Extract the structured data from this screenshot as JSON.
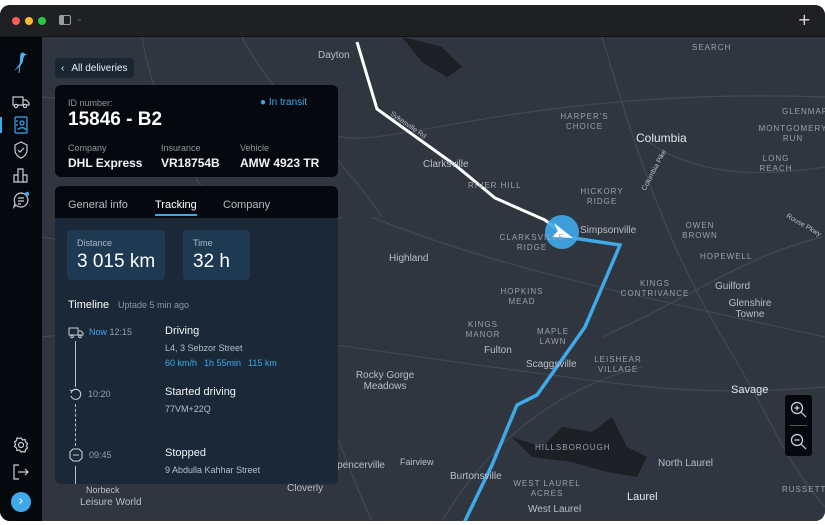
{
  "window": {
    "new_tab_label": "+"
  },
  "sidebar": {
    "items": [
      {
        "icon": "truck-icon"
      },
      {
        "icon": "contact-card-icon",
        "active": true
      },
      {
        "icon": "shield-check-icon"
      },
      {
        "icon": "bar-chart-icon"
      },
      {
        "icon": "chat-notification-icon"
      }
    ],
    "bottom": [
      {
        "icon": "gear-icon"
      },
      {
        "icon": "logout-icon"
      },
      {
        "icon": "expand-chevron-icon"
      }
    ]
  },
  "back_button": {
    "label": "All deliveries"
  },
  "delivery": {
    "id_label": "ID number:",
    "id": "15846 - B2",
    "status": "In transit",
    "status_color": "#3fa9ea",
    "fields": [
      {
        "label": "Company",
        "value": "DHL Express"
      },
      {
        "label": "Insurance",
        "value": "VR18754B"
      },
      {
        "label": "Vehicle",
        "value": "AMW 4923 TR"
      }
    ]
  },
  "tabs": [
    {
      "label": "General info"
    },
    {
      "label": "Tracking",
      "active": true
    },
    {
      "label": "Company"
    }
  ],
  "stats": [
    {
      "label": "Distance",
      "value": "3 015 km"
    },
    {
      "label": "Time",
      "value": "32 h"
    }
  ],
  "timeline": {
    "title": "Timeline",
    "updated": "Uptade 5 min ago",
    "events": [
      {
        "now": "Now",
        "time": "12:15",
        "title": "Driving",
        "address": "L4, 3 Sebzor Street",
        "speed": "60 km/h",
        "duration": "1h 55min",
        "distance": "115 km",
        "icon": "truck-icon"
      },
      {
        "time": "10:20",
        "title": "Started driving",
        "address": "77VM+22Q",
        "icon": "restart-icon"
      },
      {
        "time": "09:45",
        "title": "Stopped",
        "address": "9 Abdulla Kahhar Street",
        "icon": "stop-icon"
      }
    ]
  },
  "map": {
    "labels": {
      "dayton": "Dayton",
      "search": "SEARCH",
      "harpers": "HARPER'S CHOICE",
      "columbia": "Columbia",
      "glenmar": "GLENMAR",
      "montgomery": "MONTGOMERY RUN",
      "longreach": "LONG REACH",
      "clarksville": "Clarksville",
      "riverhill": "RIVER HILL",
      "hickory": "HICKORY RIDGE",
      "owenbrown": "OWEN BROWN",
      "simpsonville": "Simpsonville",
      "clarksvilleridge": "CLARKSVILLE RIDGE",
      "highland": "Highland",
      "hopewell": "HOPEWELL",
      "kingscontrivance": "KINGS CONTRIVANCE",
      "guilford": "Guilford",
      "glenshire": "Glenshire Towne",
      "hopkins": "HOPKINS MEAD",
      "kingsmanor": "KINGS MANOR",
      "maplelawn": "MAPLE LAWN",
      "fulton": "Fulton",
      "scaggsville": "Scaggsville",
      "leishear": "LEISHEAR VILLAGE",
      "rockygorge": "Rocky Gorge Meadows",
      "savage": "Savage",
      "hillsborough": "HILLSBOROUGH",
      "spencerville": "Spencerville",
      "fairview": "Fairview",
      "burtonsville": "Burtonsville",
      "northlaurel": "North Laurel",
      "westlaurelacres": "WEST LAUREL ACRES",
      "laurel": "Laurel",
      "westlaurel": "West Laurel",
      "cloverly": "Cloverly",
      "leisureworld": "Leisure World",
      "norbeck": "Norbeck",
      "russett": "RUSSETT",
      "sykesville": "Sykesville Rd",
      "columbiapike": "Columbia Pike",
      "rouse": "Rouse Pkwy"
    },
    "route_traveled_color": "#ffffff",
    "route_remaining_color": "#3fa9ea"
  },
  "zoom_controls": {
    "zoom_in": "zoom-in-icon",
    "zoom_out": "zoom-out-icon"
  }
}
